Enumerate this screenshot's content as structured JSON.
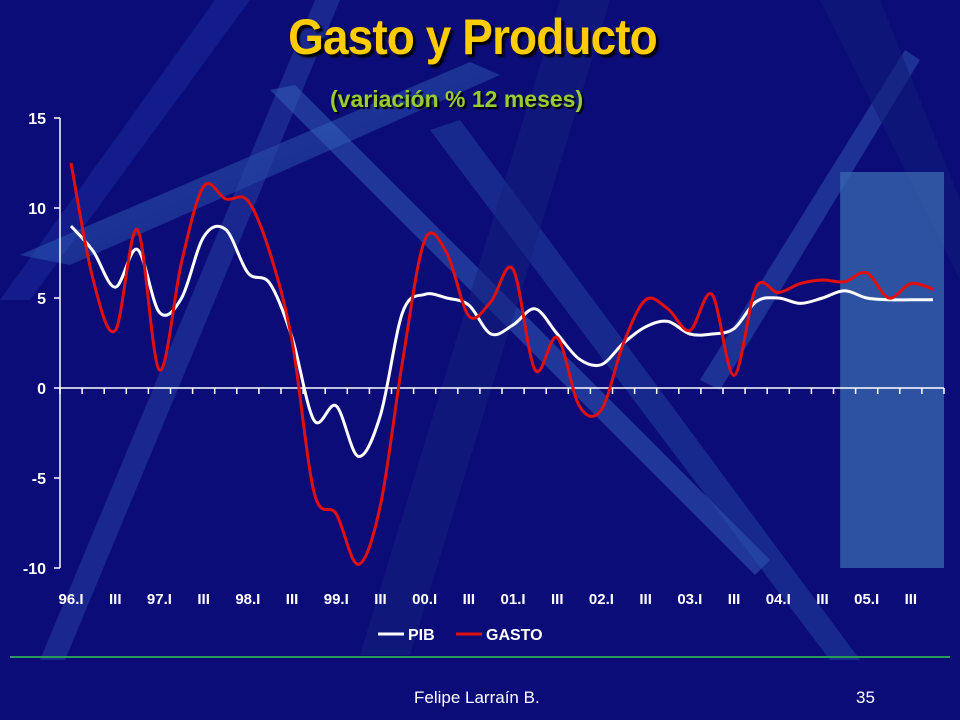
{
  "slide": {
    "title": "Gasto y Producto",
    "subtitle": "(variación % 12 meses)",
    "footer_author": "Felipe Larraín B.",
    "footer_page": "35"
  },
  "colors": {
    "background": "#0c0c78",
    "title": "#ffcc00",
    "subtitle": "#99cc33",
    "pib": "#ffffff",
    "gasto": "#e01010",
    "highlight": "#3a6ab0"
  },
  "chart_data": {
    "type": "line",
    "title": "Gasto y Producto",
    "subtitle": "(variación % 12 meses)",
    "ylim": [
      -10,
      15
    ],
    "y_ticks": [
      15,
      10,
      5,
      0,
      -5,
      -10
    ],
    "x_tick_labels": [
      "96.I",
      "III",
      "97.I",
      "III",
      "98.I",
      "III",
      "99.I",
      "III",
      "00.I",
      "III",
      "01.I",
      "III",
      "02.I",
      "III",
      "03.I",
      "III",
      "04.I",
      "III",
      "05.I",
      "III"
    ],
    "x": [
      "96.I",
      "96.II",
      "96.III",
      "96.IV",
      "97.I",
      "97.II",
      "97.III",
      "97.IV",
      "98.I",
      "98.II",
      "98.III",
      "98.IV",
      "99.I",
      "99.II",
      "99.III",
      "99.IV",
      "00.I",
      "00.II",
      "00.III",
      "00.IV",
      "01.I",
      "01.II",
      "01.III",
      "01.IV",
      "02.I",
      "02.II",
      "02.III",
      "02.IV",
      "03.I",
      "03.II",
      "03.III",
      "03.IV",
      "04.I",
      "04.II",
      "04.III",
      "04.IV",
      "05.I",
      "05.II",
      "05.III",
      "05.IV"
    ],
    "series": [
      {
        "name": "PIB",
        "values": [
          9.0,
          7.6,
          5.6,
          7.7,
          4.2,
          5.0,
          8.4,
          8.8,
          6.4,
          5.8,
          2.8,
          -1.8,
          -1.0,
          -3.8,
          -1.5,
          4.2,
          5.2,
          5.0,
          4.6,
          3.0,
          3.5,
          4.4,
          3.0,
          1.6,
          1.3,
          2.5,
          3.4,
          3.7,
          3.0,
          3.0,
          3.3,
          4.8,
          5.0,
          4.7,
          5.0,
          5.4,
          5.0,
          4.9,
          4.9,
          4.9
        ]
      },
      {
        "name": "GASTO",
        "values": [
          12.5,
          6.0,
          3.2,
          8.8,
          1.0,
          7.0,
          11.2,
          10.5,
          10.4,
          7.5,
          2.6,
          -5.8,
          -7.0,
          -9.8,
          -6.5,
          1.5,
          8.2,
          7.5,
          4.0,
          4.8,
          6.6,
          1.0,
          2.8,
          -1.0,
          -1.2,
          2.5,
          4.9,
          4.4,
          3.2,
          5.2,
          0.7,
          5.6,
          5.3,
          5.8,
          6.0,
          5.9,
          6.4,
          5.0,
          5.8,
          5.5
        ]
      }
    ],
    "highlight": {
      "from": "04.IV",
      "to": "05.IV"
    },
    "legend_position": "bottom-center",
    "grid": false
  }
}
